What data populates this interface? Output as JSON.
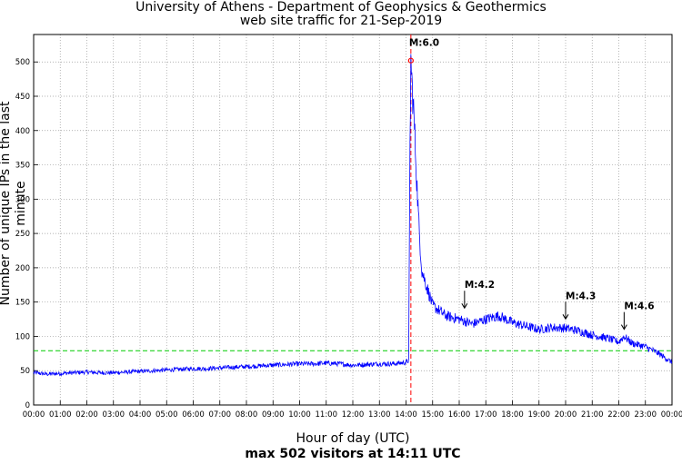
{
  "chart_data": {
    "type": "line",
    "title": "University of Athens - Department of Geophysics & Geothermics",
    "subtitle": "web site traffic for 21-Sep-2019",
    "xlabel": "Hour of day (UTC)",
    "ylabel": "Number of unique IPs in the last minute",
    "caption": "max 502 visitors at 14:11 UTC",
    "x_ticks": [
      "00:00",
      "01:00",
      "02:00",
      "03:00",
      "04:00",
      "05:00",
      "06:00",
      "07:00",
      "08:00",
      "09:00",
      "10:00",
      "11:00",
      "12:00",
      "13:00",
      "14:00",
      "15:00",
      "16:00",
      "17:00",
      "18:00",
      "19:00",
      "20:00",
      "21:00",
      "22:00",
      "23:00",
      "00:00"
    ],
    "y_ticks": [
      0,
      50,
      100,
      150,
      200,
      250,
      300,
      350,
      400,
      450,
      500
    ],
    "xlim": [
      0,
      24
    ],
    "ylim": [
      0,
      540
    ],
    "grid": true,
    "series": [
      {
        "color": "#0000ff",
        "x": [
          0,
          0.5,
          1,
          1.5,
          2,
          2.5,
          3,
          3.5,
          4,
          4.5,
          5,
          5.5,
          6,
          6.5,
          7,
          7.5,
          8,
          8.5,
          9,
          9.5,
          10,
          10.5,
          11,
          11.5,
          12,
          12.5,
          13,
          13.5,
          14,
          14.1,
          14.15,
          14.183,
          14.22,
          14.3,
          14.4,
          14.5,
          14.6,
          14.8,
          15,
          15.5,
          16,
          16.5,
          17,
          17.5,
          18,
          18.5,
          19,
          19.5,
          20,
          20.5,
          21,
          21.5,
          22,
          22.2,
          22.5,
          23,
          23.5,
          24
        ],
        "values": [
          47,
          45,
          46,
          47,
          48,
          47,
          47,
          48,
          49,
          50,
          51,
          52,
          53,
          53,
          54,
          55,
          56,
          57,
          58,
          59,
          60,
          60,
          61,
          60,
          58,
          59,
          60,
          60,
          62,
          65,
          380,
          502,
          470,
          420,
          330,
          250,
          195,
          170,
          145,
          130,
          125,
          118,
          125,
          130,
          120,
          115,
          110,
          113,
          112,
          108,
          102,
          98,
          92,
          100,
          90,
          85,
          75,
          62
        ]
      }
    ],
    "reference_lines": [
      {
        "type": "horizontal",
        "value": 79,
        "color": "#00cc00",
        "style": "dashed"
      },
      {
        "type": "vertical",
        "value": 14.183,
        "color": "#ff0000",
        "style": "dashed"
      }
    ],
    "peak_marker": {
      "x": 14.183,
      "y": 502,
      "color": "#ff0000"
    },
    "annotations": [
      {
        "label": "M:6.0",
        "x": 14.183,
        "y": 502,
        "arrow": false
      },
      {
        "label": "M:4.2",
        "x": 16.2,
        "y": 140,
        "arrow": true
      },
      {
        "label": "M:4.3",
        "x": 20.0,
        "y": 124,
        "arrow": true
      },
      {
        "label": "M:4.6",
        "x": 22.2,
        "y": 109,
        "arrow": true
      }
    ]
  }
}
